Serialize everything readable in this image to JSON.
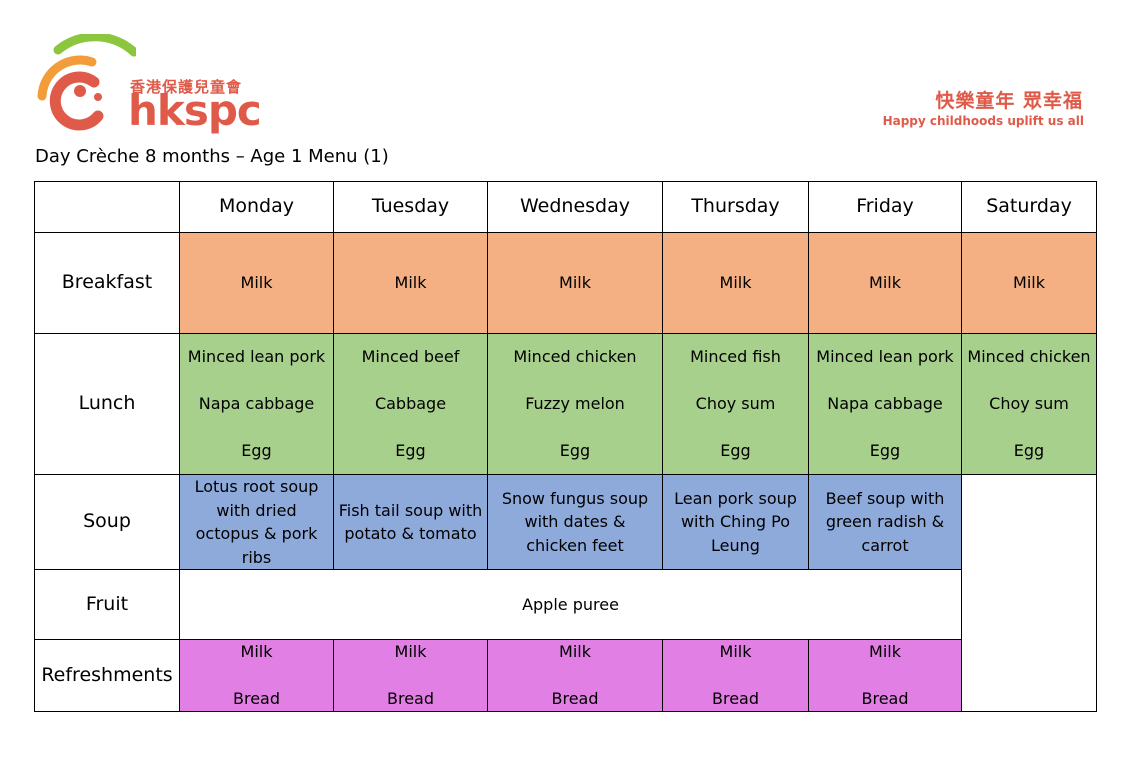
{
  "header": {
    "logo_cn": "香港保護兒童會",
    "logo_en": "hkspc",
    "slogan_cn": "快樂童年 眾幸福",
    "slogan_en": "Happy childhoods uplift us all",
    "colors": {
      "brand_red": "#e05a4a",
      "brand_orange": "#f39c3a",
      "brand_green": "#8cc63f"
    }
  },
  "title": "Day Crèche 8 months – Age 1 Menu (1)",
  "days": [
    "Monday",
    "Tuesday",
    "Wednesday",
    "Thursday",
    "Friday",
    "Saturday"
  ],
  "rows": {
    "breakfast": {
      "label": "Breakfast",
      "items": [
        "Milk",
        "Milk",
        "Milk",
        "Milk",
        "Milk",
        "Milk"
      ]
    },
    "lunch": {
      "label": "Lunch",
      "items": [
        [
          "Minced lean pork",
          "Napa cabbage",
          "Egg"
        ],
        [
          "Minced beef",
          "Cabbage",
          "Egg"
        ],
        [
          "Minced chicken",
          "Fuzzy melon",
          "Egg"
        ],
        [
          "Minced fish",
          "Choy sum",
          "Egg"
        ],
        [
          "Minced lean pork",
          "Napa cabbage",
          "Egg"
        ],
        [
          "Minced chicken",
          "Choy sum",
          "Egg"
        ]
      ]
    },
    "soup": {
      "label": "Soup",
      "items": [
        "Lotus root soup with dried octopus & pork ribs",
        "Fish tail soup with potato & tomato",
        "Snow fungus soup with dates & chicken feet",
        "Lean pork soup with Ching Po Leung",
        "Beef soup with green radish & carrot"
      ]
    },
    "fruit": {
      "label": "Fruit",
      "item": "Apple puree"
    },
    "refreshments": {
      "label": "Refreshments",
      "items": [
        [
          "Milk",
          "Bread"
        ],
        [
          "Milk",
          "Bread"
        ],
        [
          "Milk",
          "Bread"
        ],
        [
          "Milk",
          "Bread"
        ],
        [
          "Milk",
          "Bread"
        ]
      ]
    }
  },
  "row_colors": {
    "breakfast": "#f4b083",
    "lunch": "#a8d08d",
    "soup": "#8eaadb",
    "refreshments": "#e27fe4"
  }
}
